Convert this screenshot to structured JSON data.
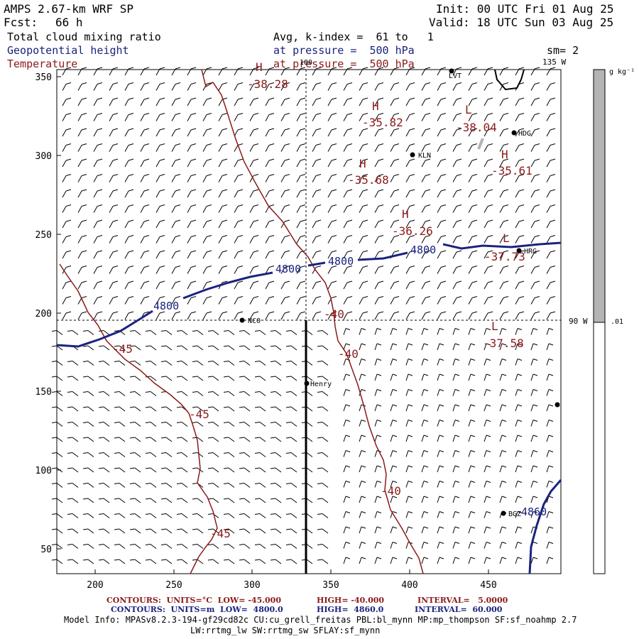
{
  "header": {
    "model": "AMPS 2.67-km WRF SP",
    "fcst_label": "Fcst:",
    "fcst_value": "66 h",
    "init": "Init: 00 UTC Fri 01 Aug 25",
    "valid": "Valid: 18 UTC Sun 03 Aug 25",
    "field1": "Total cloud mixing ratio",
    "field2": "Geopotential height",
    "field3": "Temperature",
    "avg": "Avg, k-index =  61 to   1",
    "pressure1": "at pressure =  500 hPa",
    "pressure2": "at pressure =  500 hPa",
    "sm": "sm= 2"
  },
  "map": {
    "lon_label_top_left": "180",
    "lon_label_top_right": "135 W",
    "lon_label_right": "90 W",
    "x_ticks": [
      "200",
      "250",
      "300",
      "350",
      "400",
      "450"
    ],
    "y_ticks": [
      "350",
      "300",
      "250",
      "200",
      "150",
      "100",
      "50"
    ],
    "stations": [
      "LVT",
      "HDG",
      "KLN",
      "HRG",
      "NCO",
      "Henry",
      "BGZ"
    ],
    "height_labels": [
      "4800",
      "4800",
      "4800",
      "4800",
      "4860"
    ],
    "temp_contour_labels": [
      "-45",
      "-45",
      "-45",
      "-40",
      "-40",
      "-40"
    ],
    "extrema": [
      {
        "type": "H",
        "value": "-38.28"
      },
      {
        "type": "H",
        "value": "-35.82"
      },
      {
        "type": "L",
        "value": "-38.04"
      },
      {
        "type": "H",
        "value": "-35.68"
      },
      {
        "type": "H",
        "value": "-35.61"
      },
      {
        "type": "H",
        "value": "-36.26"
      },
      {
        "type": "L",
        "value": "-37.73"
      },
      {
        "type": "L",
        "value": "-37.58"
      }
    ]
  },
  "colorbar": {
    "unit": "g kg⁻¹",
    "tick": ".01"
  },
  "footer": {
    "line1_a": "CONTOURS:  UNITS=°C  LOW= -45.000",
    "line1_b": "HIGH= -40.000",
    "line1_c": "INTERVAL=   5.0000",
    "line2_a": "CONTOURS:  UNITS=m  LOW=  4800.0",
    "line2_b": "HIGH=  4860.0",
    "line2_c": "INTERVAL=  60.000",
    "info1": "Model Info: MPASv8.2.3-194-gf29cd82c CU:cu_grell_freitas PBL:bl_mynn MP:mp_thompson SF:sf_noahmp 2.7",
    "info2": "LW:rrtmg_lw SW:rrtmg_sw SFLAY:sf_mynn"
  },
  "colors": {
    "height": "#1a237e",
    "temperature": "#8b1a1a",
    "colorbar_fill": "#b4b4b4"
  }
}
